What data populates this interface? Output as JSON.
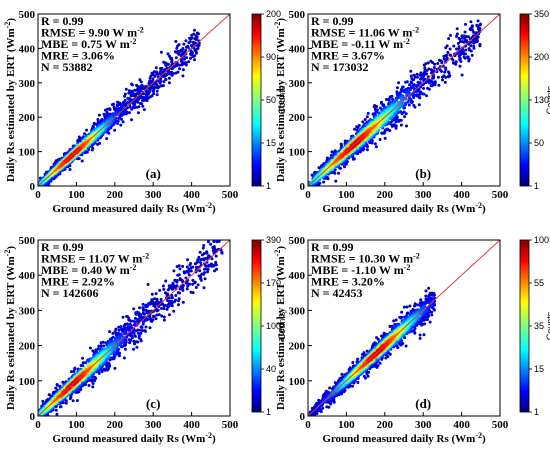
{
  "chart_data": [
    {
      "type": "scatter",
      "panel_label": "(a)",
      "xlabel": "Ground measured daily Rs (Wm",
      "ylabel": "Daily Rs estimated by ERT (Wm",
      "unit_exponent": "-2",
      "xlim": [
        0,
        500
      ],
      "ylim": [
        0,
        500
      ],
      "xticks": [
        0,
        100,
        200,
        300,
        400,
        500
      ],
      "yticks": [
        0,
        100,
        200,
        300,
        400,
        500
      ],
      "xtick_labels": [
        "0",
        "100",
        "200",
        "300",
        "400",
        "500"
      ],
      "ytick_labels": [
        "0",
        "100",
        "200",
        "300",
        "400",
        "500"
      ],
      "reference_line": {
        "x": [
          0,
          500
        ],
        "y": [
          0,
          500
        ],
        "color": "#e53935"
      },
      "stats": {
        "r": "R = 0.99",
        "rmse": "RMSE = 9.90  W m",
        "mbe": "MBE = 0.75   W m",
        "mre": "MRE = 3.06%",
        "n": "N = 53882",
        "unit_exponent": "-2"
      },
      "colorbar": {
        "label": "Counts",
        "ticks": [
          1,
          15,
          50,
          90,
          200
        ],
        "tick_labels": [
          "1",
          "15",
          "50",
          "90",
          "200"
        ],
        "max": 200
      },
      "density": {
        "x_range": [
          5,
          420
        ],
        "spread": 17,
        "center": 90,
        "center_sigma": 70
      }
    },
    {
      "type": "scatter",
      "panel_label": "(b)",
      "xlabel": "Ground measured daily Rs (Wm",
      "ylabel": "Daily Rs estimated by ERT (Wm",
      "unit_exponent": "-2",
      "xlim": [
        0,
        500
      ],
      "ylim": [
        0,
        500
      ],
      "xticks": [
        0,
        100,
        200,
        300,
        400,
        500
      ],
      "yticks": [
        0,
        100,
        200,
        300,
        400,
        500
      ],
      "xtick_labels": [
        "0",
        "100",
        "200",
        "300",
        "400",
        "500"
      ],
      "ytick_labels": [
        "0",
        "100",
        "200",
        "300",
        "400",
        "500"
      ],
      "reference_line": {
        "x": [
          0,
          500
        ],
        "y": [
          0,
          500
        ],
        "color": "#e53935"
      },
      "stats": {
        "r": "R = 0.99",
        "rmse": "RMSE = 11.06  W m",
        "mbe": "MBE = -0.11   W m",
        "mre": "MRE = 3.67%",
        "n": "N = 173032",
        "unit_exponent": "-2"
      },
      "colorbar": {
        "label": "Counts",
        "ticks": [
          1,
          50,
          130,
          200,
          350
        ],
        "tick_labels": [
          "1",
          "50",
          "130",
          "200",
          "350"
        ],
        "max": 350
      },
      "density": {
        "x_range": [
          3,
          450
        ],
        "spread": 22,
        "center": 120,
        "center_sigma": 90
      }
    },
    {
      "type": "scatter",
      "panel_label": "(c)",
      "xlabel": "Ground measured daily Rs (Wm",
      "ylabel": "Daily Rs estimated by ERT (Wm",
      "unit_exponent": "-2",
      "xlim": [
        0,
        500
      ],
      "ylim": [
        0,
        500
      ],
      "xticks": [
        0,
        100,
        200,
        300,
        400,
        500
      ],
      "yticks": [
        0,
        100,
        200,
        300,
        400,
        500
      ],
      "xtick_labels": [
        "0",
        "100",
        "200",
        "300",
        "400",
        "500"
      ],
      "ytick_labels": [
        "0",
        "100",
        "200",
        "300",
        "400",
        "500"
      ],
      "reference_line": {
        "x": [
          0,
          500
        ],
        "y": [
          0,
          500
        ],
        "color": "#e53935"
      },
      "stats": {
        "r": "R = 0.99",
        "rmse": "RMSE = 11.07  W m",
        "mbe": "MBE = 0.40     W m",
        "mre": "MRE = 2.92%",
        "n": "N = 142606",
        "unit_exponent": "-2"
      },
      "colorbar": {
        "label": "Counts",
        "ticks": [
          1,
          40,
          100,
          170,
          390
        ],
        "tick_labels": [
          "1",
          "40",
          "100",
          "170",
          "390"
        ],
        "max": 390
      },
      "density": {
        "x_range": [
          3,
          480
        ],
        "spread": 22,
        "center": 90,
        "center_sigma": 80
      }
    },
    {
      "type": "scatter",
      "panel_label": "(d)",
      "xlabel": "Ground measured daily Rs (Wm",
      "ylabel": "Daily Rs estimated by ERT (Wm",
      "unit_exponent": "-2",
      "xlim": [
        0,
        500
      ],
      "ylim": [
        0,
        500
      ],
      "xticks": [
        0,
        100,
        200,
        300,
        400,
        500
      ],
      "yticks": [
        0,
        100,
        200,
        300,
        400,
        500
      ],
      "xtick_labels": [
        "0",
        "100",
        "200",
        "300",
        "400",
        "500"
      ],
      "ytick_labels": [
        "0",
        "100",
        "200",
        "300",
        "400",
        "500"
      ],
      "reference_line": {
        "x": [
          0,
          500
        ],
        "y": [
          0,
          500
        ],
        "color": "#e53935"
      },
      "stats": {
        "r": "R = 0.99",
        "rmse": "RMSE = 10.30  W m",
        "mbe": "MBE = -1.10    W m",
        "mre": "MRE = 3.20%",
        "n": "N = 42453",
        "unit_exponent": "-2"
      },
      "colorbar": {
        "label": "Counts",
        "ticks": [
          1,
          15,
          35,
          55,
          100
        ],
        "tick_labels": [
          "1",
          "15",
          "35",
          "55",
          "100"
        ],
        "max": 100
      },
      "density": {
        "x_range": [
          5,
          330
        ],
        "spread": 16,
        "center": 180,
        "center_sigma": 80
      }
    }
  ]
}
